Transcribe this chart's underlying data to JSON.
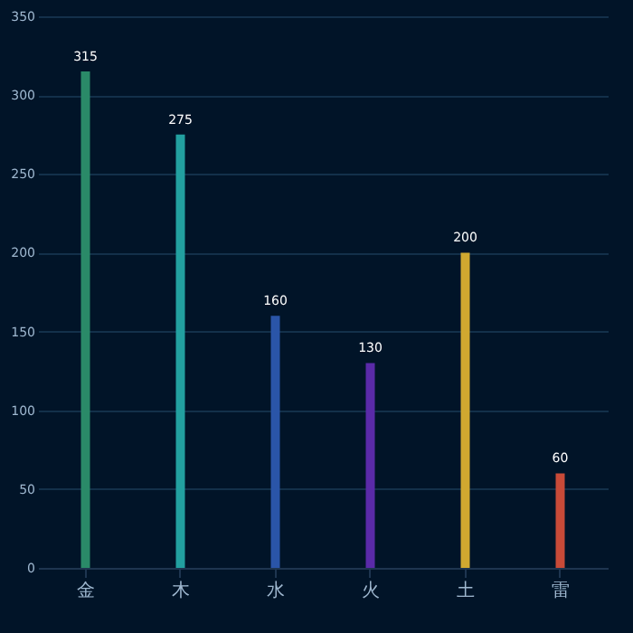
{
  "chart_data": {
    "type": "bar",
    "categories": [
      "金",
      "木",
      "水",
      "火",
      "土",
      "雷"
    ],
    "values": [
      315,
      275,
      160,
      130,
      200,
      60
    ],
    "colors": [
      "#2a8a68",
      "#22a0a0",
      "#2a55a8",
      "#5a2aa8",
      "#d0a830",
      "#c84a38"
    ],
    "ylim": [
      0,
      350
    ],
    "yticks": [
      0,
      50,
      100,
      150,
      200,
      250,
      300,
      350
    ],
    "grid": "y",
    "data_labels": true
  }
}
